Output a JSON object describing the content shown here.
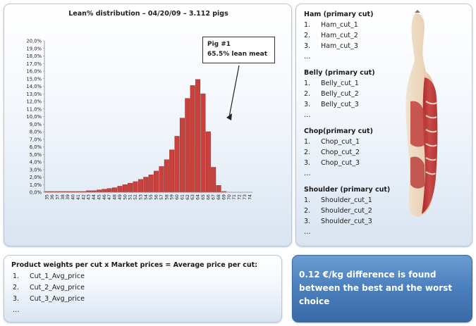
{
  "chart_panel": {
    "annotation": {
      "title": "Pig #1",
      "text": "65.5% lean meat"
    }
  },
  "chart_data": {
    "type": "bar",
    "title": "Lean% distribution – 04/20/09 – 3.112 pigs",
    "xlabel": "",
    "ylabel": "",
    "categories": [
      "35",
      "36",
      "37",
      "38",
      "39",
      "40",
      "41",
      "42",
      "43",
      "44",
      "45",
      "46",
      "47",
      "48",
      "49",
      "50",
      "51",
      "52",
      "53",
      "54",
      "55",
      "56",
      "57",
      "58",
      "59",
      "60",
      "61",
      "62",
      "63",
      "64",
      "65",
      "66",
      "67",
      "68",
      "69",
      "70",
      "71",
      "72",
      "73",
      "74"
    ],
    "values": [
      0.1,
      0.1,
      0.1,
      0.1,
      0.1,
      0.1,
      0.1,
      0.1,
      0.2,
      0.2,
      0.3,
      0.4,
      0.5,
      0.6,
      0.8,
      1.0,
      1.2,
      1.4,
      1.7,
      2.0,
      2.3,
      2.8,
      3.4,
      4.3,
      5.6,
      7.4,
      9.8,
      12.4,
      14.1,
      14.9,
      13.0,
      8.0,
      3.3,
      0.9,
      0.1,
      0.0,
      0.0,
      0.0,
      0.0,
      0.0
    ],
    "ylim": [
      0,
      20
    ],
    "y_ticks": [
      "0,0%",
      "1,0%",
      "2,0%",
      "3,0%",
      "4,0%",
      "5,0%",
      "6,0%",
      "7,0%",
      "8,0%",
      "9,0%",
      "10,0%",
      "11,0%",
      "12,0%",
      "13,0%",
      "14,0%",
      "15,0%",
      "16,0%",
      "17,0%",
      "18,0%",
      "19,0%",
      "20,0%"
    ],
    "grid": false,
    "bar_color": "#c8413c"
  },
  "cuts_panel": {
    "groups": [
      {
        "heading": "Ham (primary  cut)",
        "items": [
          "Ham_cut_1",
          "Ham_cut_2",
          "Ham_cut_3"
        ],
        "more": "…"
      },
      {
        "heading": "Belly (primary cut)",
        "items": [
          "Belly_cut_1",
          "Belly_cut_2",
          "Belly_cut_3"
        ],
        "more": "…"
      },
      {
        "heading": "Chop(primary cut)",
        "items": [
          "Chop_cut_1",
          "Chop_cut_2",
          "Chop_cut_3"
        ],
        "more": "…"
      },
      {
        "heading": "Shoulder (primary cut)",
        "items": [
          "Shoulder_cut_1",
          "Shoulder_cut_2",
          "Shoulder_cut_3"
        ],
        "more": "…"
      }
    ],
    "numbers": [
      "1.",
      "2.",
      "3."
    ]
  },
  "formula_panel": {
    "title": "Product weights per cut x Market prices = Average price per cut:",
    "items": [
      "Cut_1_Avg_price",
      "Cut_2_Avg_price",
      "Cut_3_Avg_price"
    ],
    "numbers": [
      "1.",
      "2.",
      "3."
    ],
    "more": "…"
  },
  "result_panel": {
    "text": "0.12 €/kg difference is found between the best and the worst choice",
    "background": "#4a7fbd"
  }
}
